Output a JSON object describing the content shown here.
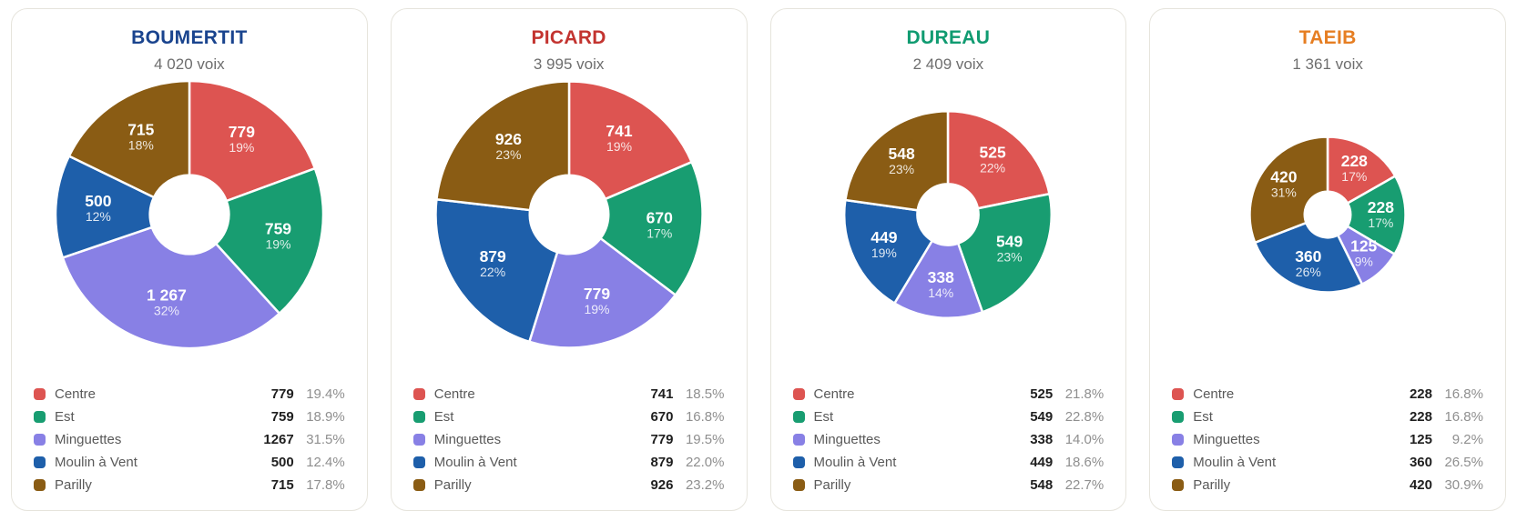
{
  "sectors": {
    "labels": [
      "Centre",
      "Est",
      "Minguettes",
      "Moulin à Vent",
      "Parilly"
    ],
    "colors": [
      "#dd5451",
      "#189d71",
      "#8880e5",
      "#1e5faa",
      "#8a5c14"
    ]
  },
  "chart_data": [
    {
      "type": "pie",
      "title": "BOUMERTIT",
      "title_color": "#1a448e",
      "subtitle": "4 020 voix",
      "total_votes": 4020,
      "categories": [
        "Centre",
        "Est",
        "Minguettes",
        "Moulin à Vent",
        "Parilly"
      ],
      "values": [
        779,
        759,
        1267,
        500,
        715
      ],
      "slice_labels": [
        [
          "779",
          "19%"
        ],
        [
          "759",
          "19%"
        ],
        [
          "1 267",
          "32%"
        ],
        [
          "500",
          "12%"
        ],
        [
          "715",
          "18%"
        ]
      ],
      "legend_rows": [
        {
          "label": "Centre",
          "value": "779",
          "pct": "19.4%"
        },
        {
          "label": "Est",
          "value": "759",
          "pct": "18.9%"
        },
        {
          "label": "Minguettes",
          "value": "1267",
          "pct": "31.5%"
        },
        {
          "label": "Moulin à Vent",
          "value": "500",
          "pct": "12.4%"
        },
        {
          "label": "Parilly",
          "value": "715",
          "pct": "17.8%"
        }
      ]
    },
    {
      "type": "pie",
      "title": "PICARD",
      "title_color": "#c33430",
      "subtitle": "3 995 voix",
      "total_votes": 3995,
      "categories": [
        "Centre",
        "Est",
        "Minguettes",
        "Moulin à Vent",
        "Parilly"
      ],
      "values": [
        741,
        670,
        779,
        879,
        926
      ],
      "slice_labels": [
        [
          "741",
          "19%"
        ],
        [
          "670",
          "17%"
        ],
        [
          "779",
          "19%"
        ],
        [
          "879",
          "22%"
        ],
        [
          "926",
          "23%"
        ]
      ],
      "legend_rows": [
        {
          "label": "Centre",
          "value": "741",
          "pct": "18.5%"
        },
        {
          "label": "Est",
          "value": "670",
          "pct": "16.8%"
        },
        {
          "label": "Minguettes",
          "value": "779",
          "pct": "19.5%"
        },
        {
          "label": "Moulin à Vent",
          "value": "879",
          "pct": "22.0%"
        },
        {
          "label": "Parilly",
          "value": "926",
          "pct": "23.2%"
        }
      ]
    },
    {
      "type": "pie",
      "title": "DUREAU",
      "title_color": "#109b71",
      "subtitle": "2 409 voix",
      "total_votes": 2409,
      "categories": [
        "Centre",
        "Est",
        "Minguettes",
        "Moulin à Vent",
        "Parilly"
      ],
      "values": [
        525,
        549,
        338,
        449,
        548
      ],
      "slice_labels": [
        [
          "525",
          "22%"
        ],
        [
          "549",
          "23%"
        ],
        [
          "338",
          "14%"
        ],
        [
          "449",
          "19%"
        ],
        [
          "548",
          "23%"
        ]
      ],
      "legend_rows": [
        {
          "label": "Centre",
          "value": "525",
          "pct": "21.8%"
        },
        {
          "label": "Est",
          "value": "549",
          "pct": "22.8%"
        },
        {
          "label": "Minguettes",
          "value": "338",
          "pct": "14.0%"
        },
        {
          "label": "Moulin à Vent",
          "value": "449",
          "pct": "18.6%"
        },
        {
          "label": "Parilly",
          "value": "548",
          "pct": "22.7%"
        }
      ]
    },
    {
      "type": "pie",
      "title": "TAEIB",
      "title_color": "#e67e22",
      "subtitle": "1 361 voix",
      "total_votes": 1361,
      "categories": [
        "Centre",
        "Est",
        "Minguettes",
        "Moulin à Vent",
        "Parilly"
      ],
      "values": [
        228,
        228,
        125,
        360,
        420
      ],
      "slice_labels": [
        [
          "228",
          "17%"
        ],
        [
          "228",
          "17%"
        ],
        [
          "125",
          "9%"
        ],
        [
          "360",
          "26%"
        ],
        [
          "420",
          "31%"
        ]
      ],
      "legend_rows": [
        {
          "label": "Centre",
          "value": "228",
          "pct": "16.8%"
        },
        {
          "label": "Est",
          "value": "228",
          "pct": "16.8%"
        },
        {
          "label": "Minguettes",
          "value": "125",
          "pct": "9.2%"
        },
        {
          "label": "Moulin à Vent",
          "value": "360",
          "pct": "26.5%"
        },
        {
          "label": "Parilly",
          "value": "420",
          "pct": "30.9%"
        }
      ]
    }
  ],
  "layout_hints": {
    "start_angle": "top",
    "direction": "clockwise",
    "radius_scaling": "sqrt of total votes, max radius card 1",
    "inner_hole_ratio": 0.295
  }
}
